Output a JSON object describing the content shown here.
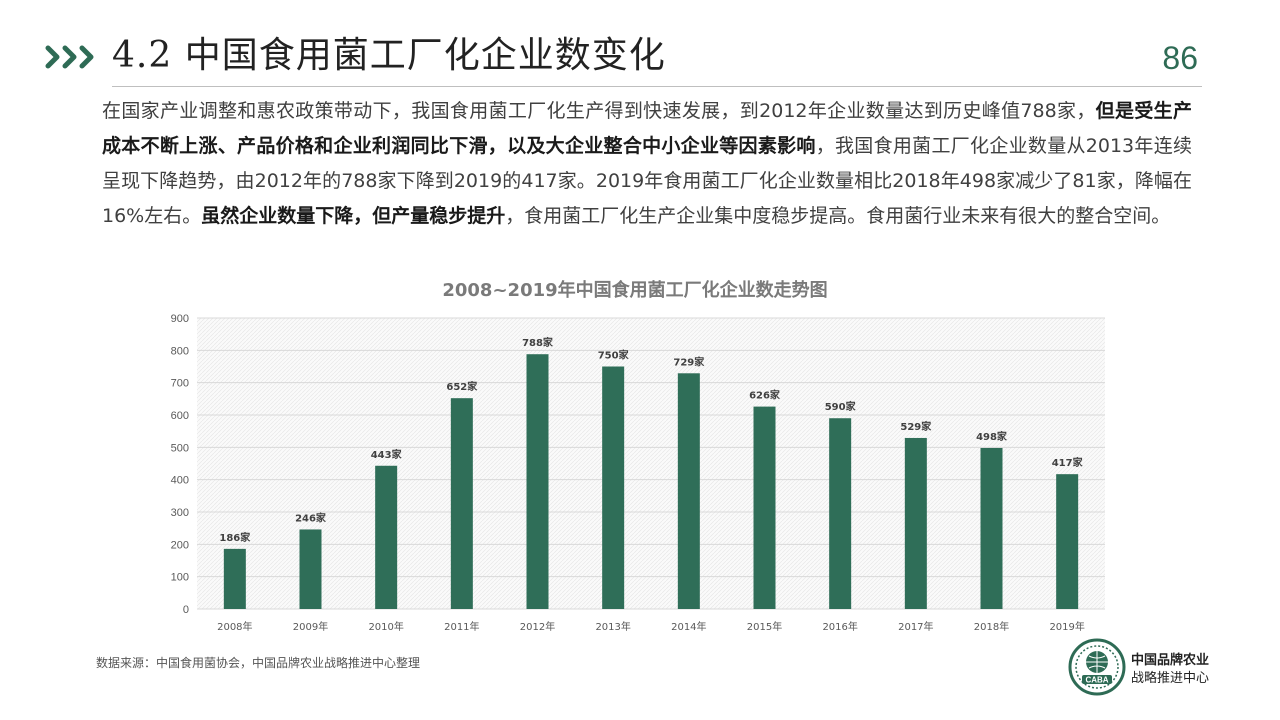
{
  "header": {
    "title": "4.2 中国食用菌工厂化企业数变化",
    "page_number": "86"
  },
  "paragraph": {
    "s1": "在国家产业调整和惠农政策带动下，我国食用菌工厂化生产得到快速发展，到2012年企业数量达到历史峰值788家，",
    "s2": "但是受生产成本不断上涨、产品价格和企业利润同比下滑，以及大企业整合中小企业等因素影响",
    "s3": "，我国食用菌工厂化企业数量从2013年连续呈现下降趋势，由2012年的788家下降到2019的417家。2019年食用菌工厂化企业数量相比2018年498家减少了81家，降幅在16%左右。",
    "s4": "虽然企业数量下降，但产量稳步提升",
    "s5": "，食用菌工厂化生产企业集中度稳步提高。食用菌行业未来有很大的整合空间。"
  },
  "chart_data": {
    "type": "bar",
    "title": "2008~2019年中国食用菌工厂化企业数走势图",
    "categories": [
      "2008年",
      "2009年",
      "2010年",
      "2011年",
      "2012年",
      "2013年",
      "2014年",
      "2015年",
      "2016年",
      "2017年",
      "2018年",
      "2019年"
    ],
    "values": [
      186,
      246,
      443,
      652,
      788,
      750,
      729,
      626,
      590,
      529,
      498,
      417
    ],
    "data_labels": [
      "186家",
      "246家",
      "443家",
      "652家",
      "788家",
      "750家",
      "729家",
      "626家",
      "590家",
      "529家",
      "498家",
      "417家"
    ],
    "ylim": [
      0,
      900
    ],
    "yticks": [
      "0",
      "100",
      "200",
      "300",
      "400",
      "500",
      "600",
      "700",
      "800",
      "900"
    ],
    "bar_color": "#2f6e58",
    "grid": true
  },
  "footer": {
    "source": "数据来源：中国食用菌协会，中国品牌农业战略推进中心整理",
    "org_line1": "中国品牌农业",
    "org_line2": "战略推进中心",
    "logo_text": "CABA"
  },
  "colors": {
    "accent": "#2e6b55"
  }
}
